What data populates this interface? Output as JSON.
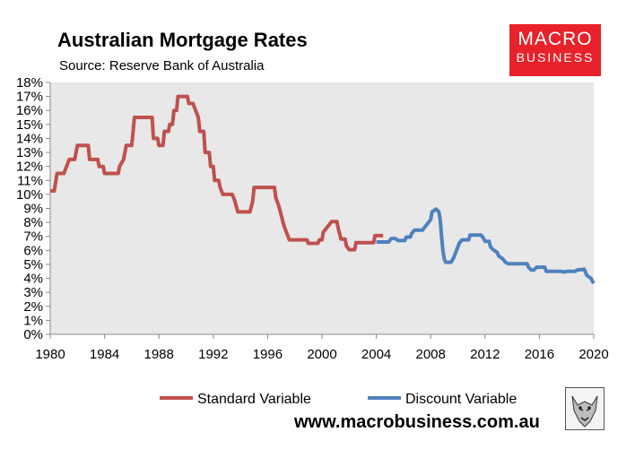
{
  "title": "Australian Mortgage Rates",
  "subtitle": "Source: Reserve Bank of Australia",
  "logo": {
    "line1": "MACRO",
    "line2": "BUSINESS",
    "color": "#e8222a"
  },
  "website": "www.macrobusiness.com.au",
  "colors": {
    "standard": "#c0504d",
    "discount": "#4f81bd",
    "plot_bg": "#e8e8e8"
  },
  "chart_data": {
    "type": "line",
    "title": "Australian Mortgage Rates",
    "subtitle": "Source: Reserve Bank of Australia",
    "xlim": [
      1980,
      2020
    ],
    "ylim": [
      0,
      18
    ],
    "x_ticks": [
      1980,
      1984,
      1988,
      1992,
      1996,
      2000,
      2004,
      2008,
      2012,
      2016,
      2020
    ],
    "x_tick_labels": [
      "1980",
      "1984",
      "1988",
      "1992",
      "1996",
      "2000",
      "2004",
      "2008",
      "2012",
      "2016",
      "2020"
    ],
    "y_ticks": [
      0,
      1,
      2,
      3,
      4,
      5,
      6,
      7,
      8,
      9,
      10,
      11,
      12,
      13,
      14,
      15,
      16,
      17,
      18
    ],
    "y_tick_labels": [
      "0%",
      "1%",
      "2%",
      "3%",
      "4%",
      "5%",
      "6%",
      "7%",
      "8%",
      "9%",
      "10%",
      "11%",
      "12%",
      "13%",
      "14%",
      "15%",
      "16%",
      "17%",
      "18%"
    ],
    "grid": false,
    "legend_position": "bottom",
    "series": [
      {
        "name": "Standard Variable",
        "color": "#c0504d",
        "points": [
          [
            1980.0,
            10.25
          ],
          [
            1980.3,
            10.25
          ],
          [
            1980.5,
            11.5
          ],
          [
            1981.0,
            11.5
          ],
          [
            1981.2,
            12.0
          ],
          [
            1981.4,
            12.5
          ],
          [
            1981.8,
            12.5
          ],
          [
            1982.0,
            13.5
          ],
          [
            1982.8,
            13.5
          ],
          [
            1982.9,
            12.5
          ],
          [
            1983.5,
            12.5
          ],
          [
            1983.6,
            12.0
          ],
          [
            1983.9,
            12.0
          ],
          [
            1984.0,
            11.5
          ],
          [
            1985.0,
            11.5
          ],
          [
            1985.1,
            12.0
          ],
          [
            1985.4,
            12.5
          ],
          [
            1985.6,
            13.5
          ],
          [
            1986.0,
            13.5
          ],
          [
            1986.2,
            15.5
          ],
          [
            1987.5,
            15.5
          ],
          [
            1987.6,
            14.0
          ],
          [
            1987.9,
            14.0
          ],
          [
            1988.0,
            13.5
          ],
          [
            1988.3,
            13.5
          ],
          [
            1988.4,
            14.5
          ],
          [
            1988.7,
            14.5
          ],
          [
            1988.8,
            15.0
          ],
          [
            1989.0,
            15.0
          ],
          [
            1989.1,
            16.0
          ],
          [
            1989.3,
            16.0
          ],
          [
            1989.4,
            17.0
          ],
          [
            1990.1,
            17.0
          ],
          [
            1990.2,
            16.5
          ],
          [
            1990.5,
            16.5
          ],
          [
            1990.7,
            16.0
          ],
          [
            1990.9,
            15.5
          ],
          [
            1991.0,
            14.5
          ],
          [
            1991.3,
            14.5
          ],
          [
            1991.4,
            13.0
          ],
          [
            1991.7,
            13.0
          ],
          [
            1991.8,
            12.0
          ],
          [
            1992.0,
            12.0
          ],
          [
            1992.1,
            11.0
          ],
          [
            1992.4,
            11.0
          ],
          [
            1992.5,
            10.5
          ],
          [
            1992.7,
            10.0
          ],
          [
            1993.4,
            10.0
          ],
          [
            1993.6,
            9.5
          ],
          [
            1993.8,
            8.75
          ],
          [
            1994.7,
            8.75
          ],
          [
            1994.9,
            9.5
          ],
          [
            1995.0,
            10.5
          ],
          [
            1996.5,
            10.5
          ],
          [
            1996.6,
            9.75
          ],
          [
            1996.8,
            9.25
          ],
          [
            1997.0,
            8.5
          ],
          [
            1997.2,
            7.75
          ],
          [
            1997.4,
            7.25
          ],
          [
            1997.6,
            6.75
          ],
          [
            1998.9,
            6.75
          ],
          [
            1999.0,
            6.5
          ],
          [
            1999.7,
            6.5
          ],
          [
            1999.8,
            6.75
          ],
          [
            2000.0,
            6.75
          ],
          [
            2000.1,
            7.3
          ],
          [
            2000.3,
            7.55
          ],
          [
            2000.5,
            7.8
          ],
          [
            2000.7,
            8.05
          ],
          [
            2001.1,
            8.05
          ],
          [
            2001.2,
            7.55
          ],
          [
            2001.4,
            6.8
          ],
          [
            2001.7,
            6.8
          ],
          [
            2001.8,
            6.3
          ],
          [
            2002.0,
            6.05
          ],
          [
            2002.4,
            6.05
          ],
          [
            2002.5,
            6.55
          ],
          [
            2003.8,
            6.55
          ],
          [
            2003.9,
            7.05
          ],
          [
            2004.5,
            7.05
          ]
        ]
      },
      {
        "name": "Discount Variable",
        "color": "#4f81bd",
        "points": [
          [
            2004.0,
            6.6
          ],
          [
            2004.9,
            6.6
          ],
          [
            2005.1,
            6.85
          ],
          [
            2005.4,
            6.85
          ],
          [
            2005.6,
            6.7
          ],
          [
            2006.1,
            6.7
          ],
          [
            2006.2,
            6.95
          ],
          [
            2006.5,
            6.95
          ],
          [
            2006.6,
            7.2
          ],
          [
            2006.8,
            7.45
          ],
          [
            2007.4,
            7.45
          ],
          [
            2007.6,
            7.7
          ],
          [
            2007.8,
            7.95
          ],
          [
            2008.0,
            8.2
          ],
          [
            2008.1,
            8.75
          ],
          [
            2008.4,
            8.95
          ],
          [
            2008.6,
            8.75
          ],
          [
            2008.7,
            8.2
          ],
          [
            2008.8,
            7.0
          ],
          [
            2008.9,
            6.0
          ],
          [
            2009.0,
            5.4
          ],
          [
            2009.1,
            5.15
          ],
          [
            2009.5,
            5.15
          ],
          [
            2009.7,
            5.5
          ],
          [
            2009.9,
            6.0
          ],
          [
            2010.1,
            6.5
          ],
          [
            2010.3,
            6.75
          ],
          [
            2010.8,
            6.75
          ],
          [
            2010.9,
            7.1
          ],
          [
            2011.7,
            7.1
          ],
          [
            2011.9,
            6.85
          ],
          [
            2012.0,
            6.65
          ],
          [
            2012.3,
            6.65
          ],
          [
            2012.4,
            6.25
          ],
          [
            2012.6,
            6.05
          ],
          [
            2012.9,
            5.85
          ],
          [
            2013.0,
            5.6
          ],
          [
            2013.3,
            5.4
          ],
          [
            2013.5,
            5.15
          ],
          [
            2013.7,
            5.05
          ],
          [
            2015.1,
            5.05
          ],
          [
            2015.2,
            4.8
          ],
          [
            2015.4,
            4.6
          ],
          [
            2015.6,
            4.6
          ],
          [
            2015.8,
            4.8
          ],
          [
            2016.4,
            4.8
          ],
          [
            2016.5,
            4.5
          ],
          [
            2016.9,
            4.5
          ],
          [
            2017.6,
            4.5
          ],
          [
            2017.8,
            4.45
          ],
          [
            2018.0,
            4.5
          ],
          [
            2018.6,
            4.5
          ],
          [
            2018.8,
            4.6
          ],
          [
            2019.3,
            4.65
          ],
          [
            2019.5,
            4.2
          ],
          [
            2019.8,
            4.0
          ],
          [
            2019.9,
            3.8
          ],
          [
            2020.0,
            3.65
          ]
        ]
      }
    ]
  }
}
